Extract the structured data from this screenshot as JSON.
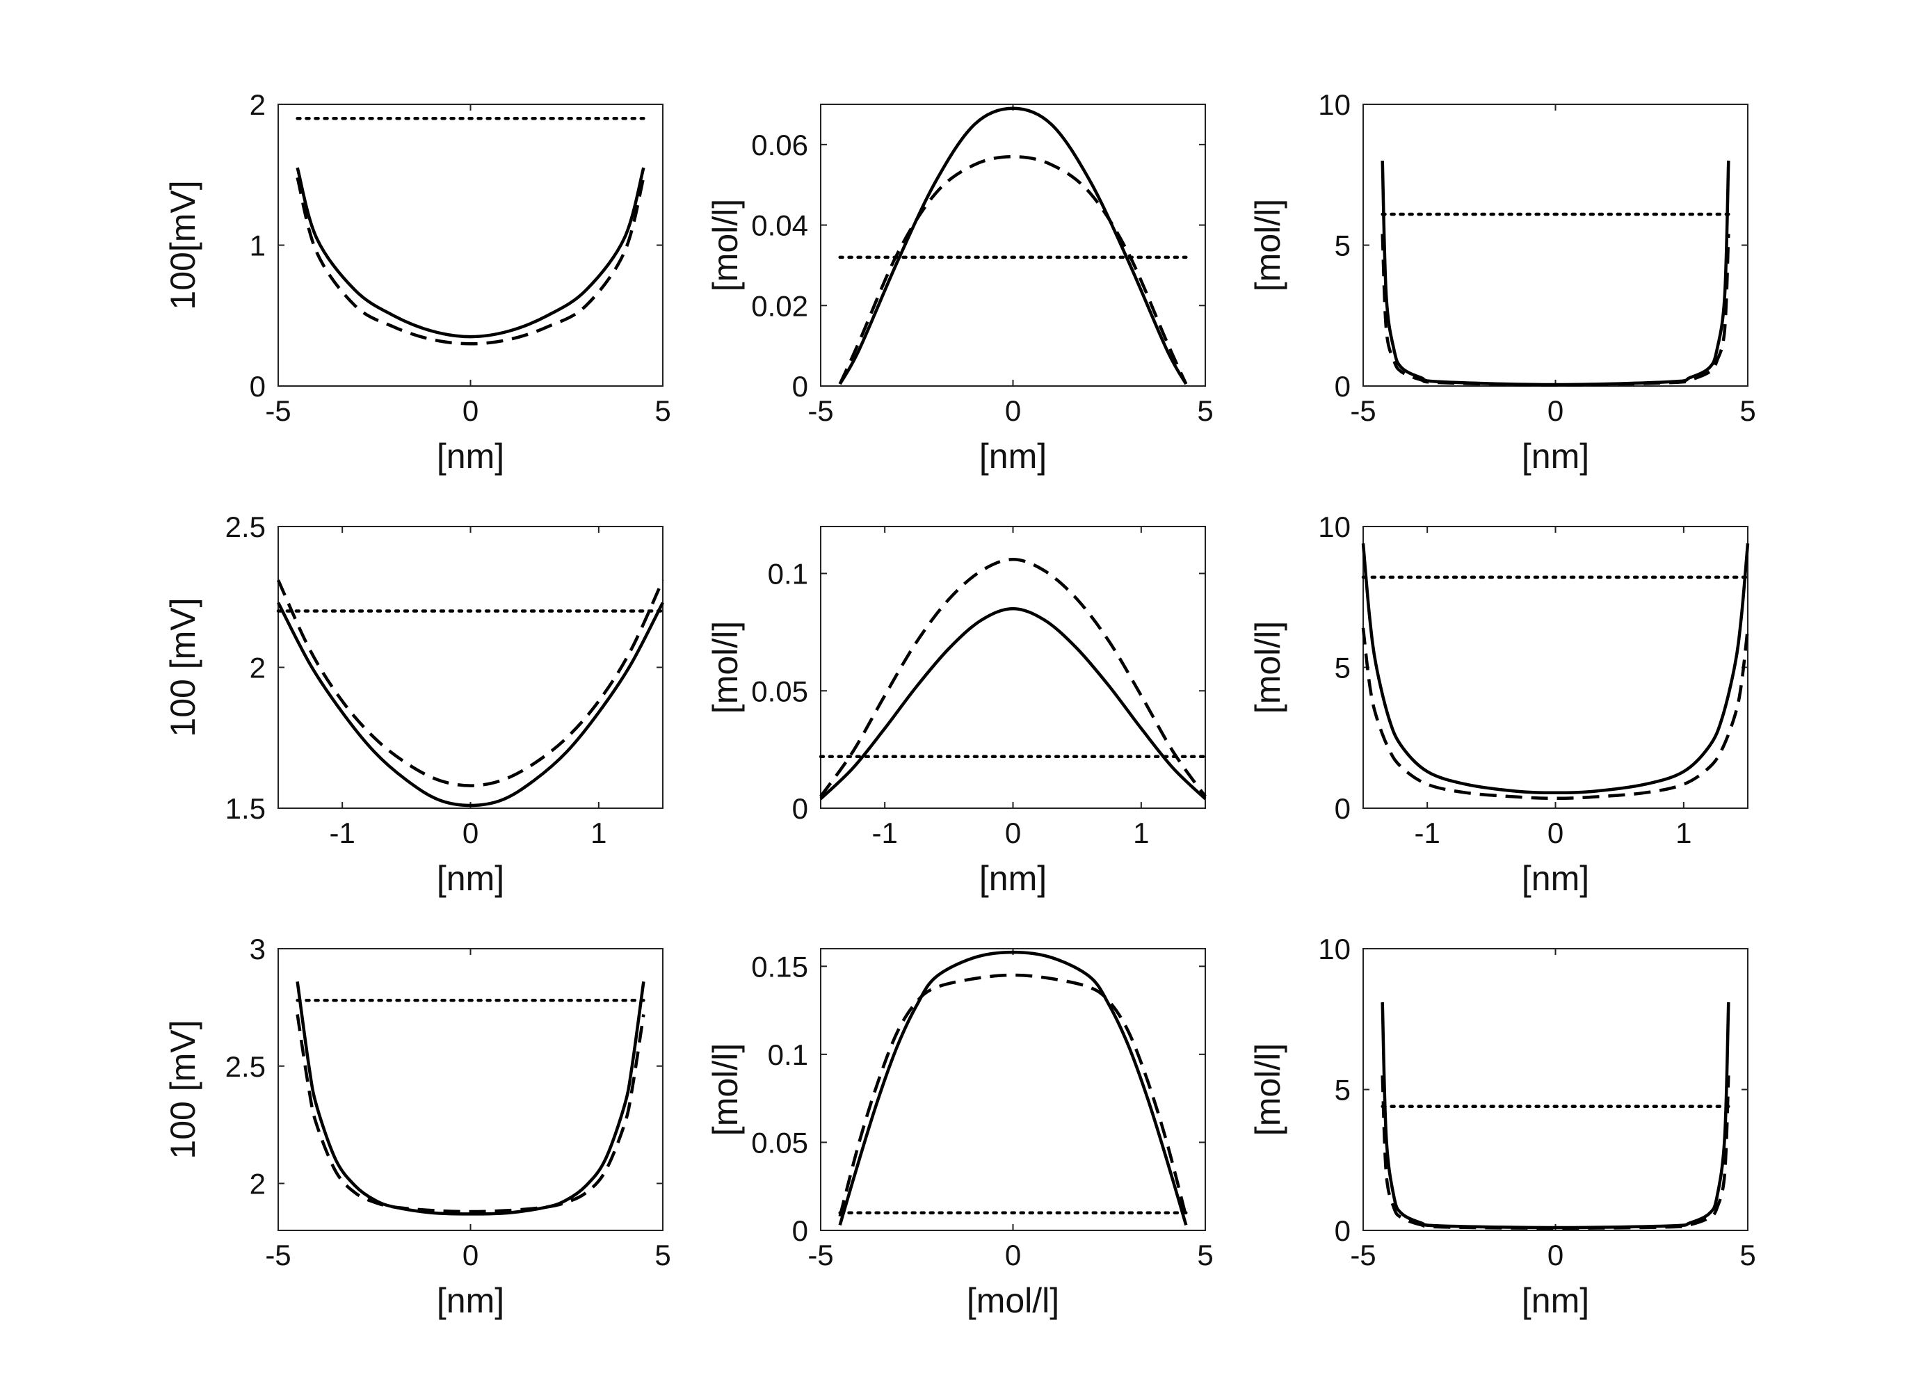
{
  "chart_data": [
    {
      "type": "line",
      "title": "",
      "xlabel": "[nm]",
      "ylabel": "100[mV]",
      "xlim": [
        -5,
        5
      ],
      "ylim": [
        0,
        2
      ],
      "xticks": [
        "-5",
        "0",
        "5"
      ],
      "yticks": [
        "0",
        "1",
        "2"
      ],
      "grid": false,
      "legend": "none",
      "series": [
        {
          "style": "solid",
          "x": [
            -4.5,
            -4.0,
            -3.0,
            -2.0,
            -1.0,
            0,
            1.0,
            2.0,
            3.0,
            4.0,
            4.5
          ],
          "y": [
            1.55,
            1.05,
            0.68,
            0.5,
            0.39,
            0.35,
            0.39,
            0.5,
            0.68,
            1.05,
            1.55
          ]
        },
        {
          "style": "dashed",
          "x": [
            -4.5,
            -4.0,
            -3.0,
            -2.0,
            -1.0,
            0,
            1.0,
            2.0,
            3.0,
            4.0,
            4.5
          ],
          "y": [
            1.48,
            0.95,
            0.57,
            0.42,
            0.33,
            0.3,
            0.33,
            0.42,
            0.57,
            0.95,
            1.48
          ]
        },
        {
          "style": "dotted",
          "x": [
            -4.5,
            4.5
          ],
          "y": [
            1.9,
            1.9
          ]
        }
      ]
    },
    {
      "type": "line",
      "title": "",
      "xlabel": "[nm]",
      "ylabel": "[mol/l]",
      "xlim": [
        -5,
        5
      ],
      "ylim": [
        0,
        0.07
      ],
      "xticks": [
        "-5",
        "0",
        "5"
      ],
      "yticks": [
        "0",
        "0.02",
        "0.04",
        "0.06"
      ],
      "grid": false,
      "legend": "none",
      "series": [
        {
          "style": "solid",
          "x": [
            -4.5,
            -4.0,
            -3.0,
            -2.0,
            -1.0,
            0,
            1.0,
            2.0,
            3.0,
            4.0,
            4.5
          ],
          "y": [
            0.0005,
            0.009,
            0.031,
            0.051,
            0.065,
            0.069,
            0.065,
            0.051,
            0.031,
            0.009,
            0.0005
          ]
        },
        {
          "style": "dashed",
          "x": [
            -4.5,
            -4.0,
            -3.0,
            -2.0,
            -1.0,
            0,
            1.0,
            2.0,
            3.0,
            4.0,
            4.5
          ],
          "y": [
            0.0005,
            0.011,
            0.033,
            0.048,
            0.055,
            0.057,
            0.055,
            0.048,
            0.033,
            0.011,
            0.0005
          ]
        },
        {
          "style": "dotted",
          "x": [
            -4.5,
            4.5
          ],
          "y": [
            0.032,
            0.032
          ]
        }
      ]
    },
    {
      "type": "line",
      "title": "",
      "xlabel": "[nm]",
      "ylabel": "[mol/l]",
      "xlim": [
        -5,
        5
      ],
      "ylim": [
        0,
        10
      ],
      "xticks": [
        "-5",
        "0",
        "5"
      ],
      "yticks": [
        "0",
        "5",
        "10"
      ],
      "grid": false,
      "legend": "none",
      "series": [
        {
          "style": "solid",
          "x": [
            -4.5,
            -4.4,
            -4.2,
            -4.0,
            -3.5,
            -3.0,
            0,
            3.0,
            3.5,
            4.0,
            4.2,
            4.4,
            4.5
          ],
          "y": [
            8.0,
            3.2,
            1.3,
            0.65,
            0.3,
            0.15,
            0.05,
            0.15,
            0.3,
            0.65,
            1.3,
            3.2,
            8.0
          ]
        },
        {
          "style": "dashed",
          "x": [
            -4.5,
            -4.4,
            -4.2,
            -4.0,
            -3.5,
            -3.0,
            0,
            3.0,
            3.5,
            4.0,
            4.2,
            4.4,
            4.5
          ],
          "y": [
            5.4,
            2.0,
            0.9,
            0.5,
            0.22,
            0.12,
            0.04,
            0.12,
            0.22,
            0.5,
            0.9,
            2.0,
            5.4
          ]
        },
        {
          "style": "dotted",
          "x": [
            -4.5,
            4.5
          ],
          "y": [
            6.1,
            6.1
          ]
        }
      ]
    },
    {
      "type": "line",
      "title": "",
      "xlabel": "[nm]",
      "ylabel": "100 [mV]",
      "xlim": [
        -1.5,
        1.5
      ],
      "ylim": [
        1.5,
        2.5
      ],
      "xticks": [
        "-1",
        "0",
        "1"
      ],
      "yticks": [
        "1.5",
        "2",
        "2.5"
      ],
      "grid": false,
      "legend": "none",
      "series": [
        {
          "style": "solid",
          "x": [
            -1.5,
            -1.25,
            -1.0,
            -0.75,
            -0.5,
            -0.25,
            0,
            0.25,
            0.5,
            0.75,
            1.0,
            1.25,
            1.5
          ],
          "y": [
            2.23,
            2.01,
            1.84,
            1.7,
            1.6,
            1.53,
            1.51,
            1.53,
            1.6,
            1.7,
            1.84,
            2.01,
            2.23
          ]
        },
        {
          "style": "dashed",
          "x": [
            -1.5,
            -1.25,
            -1.0,
            -0.75,
            -0.5,
            -0.25,
            0,
            0.25,
            0.5,
            0.75,
            1.0,
            1.25,
            1.5
          ],
          "y": [
            2.31,
            2.06,
            1.88,
            1.75,
            1.66,
            1.6,
            1.58,
            1.6,
            1.66,
            1.75,
            1.88,
            2.06,
            2.31
          ]
        },
        {
          "style": "dotted",
          "x": [
            -1.5,
            1.5
          ],
          "y": [
            2.2,
            2.2
          ]
        }
      ]
    },
    {
      "type": "line",
      "title": "",
      "xlabel": "[nm]",
      "ylabel": "[mol/l]",
      "xlim": [
        -1.5,
        1.5
      ],
      "ylim": [
        0,
        0.12
      ],
      "xticks": [
        "-1",
        "0",
        "1"
      ],
      "yticks": [
        "0",
        "0.05",
        "0.1"
      ],
      "grid": false,
      "legend": "none",
      "series": [
        {
          "style": "solid",
          "x": [
            -1.5,
            -1.25,
            -1.0,
            -0.75,
            -0.5,
            -0.25,
            0,
            0.25,
            0.5,
            0.75,
            1.0,
            1.25,
            1.5
          ],
          "y": [
            0.004,
            0.017,
            0.034,
            0.052,
            0.068,
            0.08,
            0.085,
            0.08,
            0.068,
            0.052,
            0.034,
            0.017,
            0.004
          ]
        },
        {
          "style": "dashed",
          "x": [
            -1.5,
            -1.25,
            -1.0,
            -0.75,
            -0.5,
            -0.25,
            0,
            0.25,
            0.5,
            0.75,
            1.0,
            1.25,
            1.5
          ],
          "y": [
            0.005,
            0.024,
            0.048,
            0.071,
            0.089,
            0.101,
            0.106,
            0.101,
            0.089,
            0.071,
            0.048,
            0.024,
            0.005
          ]
        },
        {
          "style": "dotted",
          "x": [
            -1.5,
            1.5
          ],
          "y": [
            0.022,
            0.022
          ]
        }
      ]
    },
    {
      "type": "line",
      "title": "",
      "xlabel": "[nm]",
      "ylabel": "[mol/l]",
      "xlim": [
        -1.5,
        1.5
      ],
      "ylim": [
        0,
        10
      ],
      "xticks": [
        "-1",
        "0",
        "1"
      ],
      "yticks": [
        "0",
        "5",
        "10"
      ],
      "grid": false,
      "legend": "none",
      "series": [
        {
          "style": "solid",
          "x": [
            -1.5,
            -1.45,
            -1.4,
            -1.3,
            -1.2,
            -1.0,
            -0.7,
            -0.3,
            0,
            0.3,
            0.7,
            1.0,
            1.2,
            1.3,
            1.4,
            1.45,
            1.5
          ],
          "y": [
            9.4,
            6.8,
            5.1,
            3.2,
            2.2,
            1.3,
            0.85,
            0.6,
            0.55,
            0.6,
            0.85,
            1.3,
            2.2,
            3.2,
            5.1,
            6.8,
            9.4
          ]
        },
        {
          "style": "dashed",
          "x": [
            -1.5,
            -1.45,
            -1.4,
            -1.3,
            -1.2,
            -1.0,
            -0.7,
            -0.3,
            0,
            0.3,
            0.7,
            1.0,
            1.2,
            1.3,
            1.4,
            1.45,
            1.5
          ],
          "y": [
            6.4,
            4.4,
            3.3,
            2.1,
            1.45,
            0.85,
            0.55,
            0.4,
            0.35,
            0.4,
            0.55,
            0.85,
            1.45,
            2.1,
            3.3,
            4.4,
            6.4
          ]
        },
        {
          "style": "dotted",
          "x": [
            -1.5,
            1.5
          ],
          "y": [
            8.2,
            8.2
          ]
        }
      ]
    },
    {
      "type": "line",
      "title": "",
      "xlabel": "[nm]",
      "ylabel": "100 [mV]",
      "xlim": [
        -5,
        5
      ],
      "ylim": [
        1.8,
        3
      ],
      "xticks": [
        "-5",
        "0",
        "5"
      ],
      "yticks": [
        "2",
        "2.5",
        "3"
      ],
      "grid": false,
      "legend": "none",
      "series": [
        {
          "style": "solid",
          "x": [
            -4.5,
            -4.2,
            -4.0,
            -3.5,
            -3.0,
            -2.5,
            -2.0,
            -1.0,
            0,
            1.0,
            2.0,
            2.5,
            3.0,
            3.5,
            4.0,
            4.2,
            4.5
          ],
          "y": [
            2.86,
            2.5,
            2.33,
            2.1,
            1.99,
            1.93,
            1.9,
            1.875,
            1.87,
            1.875,
            1.9,
            1.93,
            1.99,
            2.1,
            2.33,
            2.5,
            2.86
          ]
        },
        {
          "style": "dashed",
          "x": [
            -4.5,
            -4.2,
            -4.0,
            -3.5,
            -3.0,
            -2.5,
            -2.0,
            -1.0,
            0,
            1.0,
            2.0,
            2.5,
            3.0,
            3.5,
            4.0,
            4.2,
            4.5
          ],
          "y": [
            2.72,
            2.4,
            2.25,
            2.05,
            1.96,
            1.92,
            1.9,
            1.885,
            1.88,
            1.885,
            1.9,
            1.92,
            1.96,
            2.05,
            2.25,
            2.4,
            2.72
          ]
        },
        {
          "style": "dotted",
          "x": [
            -4.5,
            4.5
          ],
          "y": [
            2.78,
            2.78
          ]
        }
      ]
    },
    {
      "type": "line",
      "title": "",
      "xlabel": "[mol/l]",
      "ylabel": "[mol/l]",
      "xlim": [
        -5,
        5
      ],
      "ylim": [
        0,
        0.16
      ],
      "xticks": [
        "-5",
        "0",
        "5"
      ],
      "yticks": [
        "0",
        "0.05",
        "0.1",
        "0.15"
      ],
      "grid": false,
      "legend": "none",
      "series": [
        {
          "style": "solid",
          "x": [
            -4.5,
            -4.0,
            -3.5,
            -3.0,
            -2.5,
            -2.0,
            -1.0,
            0,
            1.0,
            2.0,
            2.5,
            3.0,
            3.5,
            4.0,
            4.5
          ],
          "y": [
            0.003,
            0.04,
            0.075,
            0.105,
            0.128,
            0.144,
            0.155,
            0.158,
            0.155,
            0.144,
            0.128,
            0.105,
            0.075,
            0.04,
            0.003
          ]
        },
        {
          "style": "dashed",
          "x": [
            -4.5,
            -4.0,
            -3.5,
            -3.0,
            -2.5,
            -2.0,
            -1.0,
            0,
            1.0,
            2.0,
            2.5,
            3.0,
            3.5,
            4.0,
            4.5
          ],
          "y": [
            0.008,
            0.05,
            0.085,
            0.113,
            0.13,
            0.138,
            0.143,
            0.145,
            0.143,
            0.138,
            0.13,
            0.113,
            0.085,
            0.05,
            0.008
          ]
        },
        {
          "style": "dotted",
          "x": [
            -4.5,
            4.5
          ],
          "y": [
            0.01,
            0.01
          ]
        }
      ]
    },
    {
      "type": "line",
      "title": "",
      "xlabel": "[nm]",
      "ylabel": "[mol/l]",
      "xlim": [
        -5,
        5
      ],
      "ylim": [
        0,
        10
      ],
      "xticks": [
        "-5",
        "0",
        "5"
      ],
      "yticks": [
        "0",
        "5",
        "10"
      ],
      "grid": false,
      "legend": "none",
      "series": [
        {
          "style": "solid",
          "x": [
            -4.5,
            -4.4,
            -4.2,
            -4.0,
            -3.5,
            -3.0,
            0,
            3.0,
            3.5,
            4.0,
            4.2,
            4.4,
            4.5
          ],
          "y": [
            8.1,
            3.3,
            1.2,
            0.6,
            0.27,
            0.16,
            0.1,
            0.16,
            0.27,
            0.6,
            1.2,
            3.3,
            8.1
          ]
        },
        {
          "style": "dashed",
          "x": [
            -4.5,
            -4.4,
            -4.2,
            -4.0,
            -3.5,
            -3.0,
            0,
            3.0,
            3.5,
            4.0,
            4.2,
            4.4,
            4.5
          ],
          "y": [
            5.5,
            2.0,
            0.8,
            0.45,
            0.2,
            0.12,
            0.08,
            0.12,
            0.2,
            0.45,
            0.8,
            2.0,
            5.5
          ]
        },
        {
          "style": "dotted",
          "x": [
            -4.5,
            4.5
          ],
          "y": [
            4.4,
            4.4
          ]
        }
      ]
    }
  ]
}
